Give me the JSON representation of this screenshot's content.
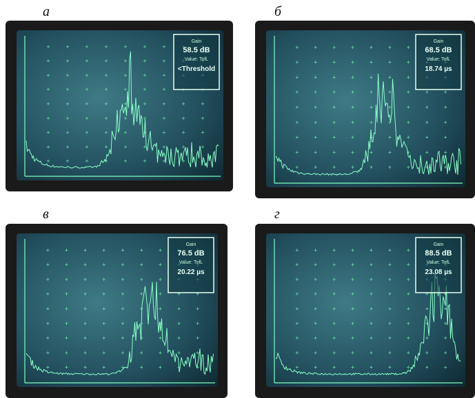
{
  "panels": [
    {
      "label": "а",
      "readout": {
        "gain": "Gain",
        "db": "58.5 dB",
        "value": "Value: TofL",
        "reading": "<Threshold"
      }
    },
    {
      "label": "б",
      "readout": {
        "gain": "Gain",
        "db": "68.5 dB",
        "value": "Value: TofL",
        "reading": "18.74 µs"
      }
    },
    {
      "label": "в",
      "readout": {
        "gain": "Gain",
        "db": "76.5 dB",
        "value": "Value: TofL",
        "reading": "20.22 µs"
      }
    },
    {
      "label": "г",
      "readout": {
        "gain": "Gain",
        "db": "88.5 dB",
        "value": "Value: TofL",
        "reading": "23.08 µs"
      }
    }
  ]
}
